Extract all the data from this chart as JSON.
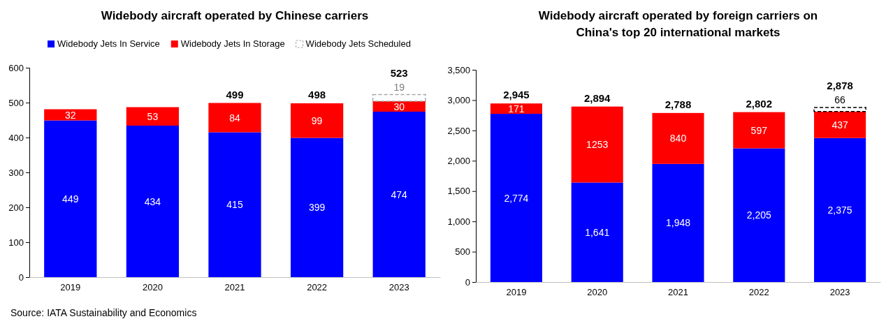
{
  "chart_data": [
    {
      "type": "bar",
      "title": "Widebody aircraft operated by Chinese carriers",
      "stacked": true,
      "legend": "top",
      "categories": [
        "2019",
        "2020",
        "2021",
        "2022",
        "2023"
      ],
      "ylim": [
        0,
        600
      ],
      "yticks": [
        0,
        100,
        200,
        300,
        400,
        500,
        600
      ],
      "series": [
        {
          "name": "Widebody Jets In Service",
          "color": "#0000ff",
          "values": [
            449,
            434,
            415,
            399,
            474
          ],
          "value_labels": [
            "449",
            "434",
            "415",
            "399",
            "474"
          ]
        },
        {
          "name": "Widebody Jets In Storage",
          "color": "#ff0000",
          "values": [
            32,
            53,
            84,
            99,
            30
          ],
          "value_labels": [
            "32",
            "53",
            "84",
            "99",
            "30"
          ]
        },
        {
          "name": "Widebody Jets Scheduled",
          "color": "#a6a6a6",
          "line_style": "dashed",
          "values": [
            null,
            null,
            null,
            null,
            19
          ],
          "value_labels": [
            null,
            null,
            null,
            null,
            "19"
          ]
        }
      ],
      "totals": [
        null,
        null,
        "499",
        "498",
        "523"
      ],
      "annotations": [
        "Source: IATA Sustainability and Economics"
      ]
    },
    {
      "type": "bar",
      "title": "Widebody aircraft operated by foreign carriers on China's top 20 international markets",
      "stacked": true,
      "categories": [
        "2019",
        "2020",
        "2021",
        "2022",
        "2023"
      ],
      "ylim": [
        0,
        3500
      ],
      "yticks": [
        0,
        500,
        {
          "value": 1000,
          "label": "1,000"
        },
        {
          "value": 1500,
          "label": "1,500"
        },
        {
          "value": 2000,
          "label": "2,000"
        },
        {
          "value": 2500,
          "label": "2,500"
        },
        {
          "value": 3000,
          "label": "3,000"
        },
        {
          "value": 3500,
          "label": "3,500"
        }
      ],
      "series": [
        {
          "color": "#0000ff",
          "values": [
            2774,
            1641,
            1948,
            2205,
            2375
          ],
          "value_labels": [
            "2,774",
            "1,641",
            "1,948",
            "2,205",
            "2,375"
          ]
        },
        {
          "color": "#ff0000",
          "values": [
            171,
            1253,
            840,
            597,
            437
          ],
          "value_labels": [
            "171",
            "1253",
            "840",
            "597",
            "437"
          ]
        },
        {
          "color": "#000000",
          "line_style": "dashed",
          "values": [
            null,
            null,
            null,
            null,
            66
          ],
          "value_labels": [
            null,
            null,
            null,
            null,
            "66"
          ]
        }
      ],
      "totals": [
        "2,945",
        "2,894",
        "2,788",
        "2,802",
        "2,878"
      ]
    }
  ]
}
